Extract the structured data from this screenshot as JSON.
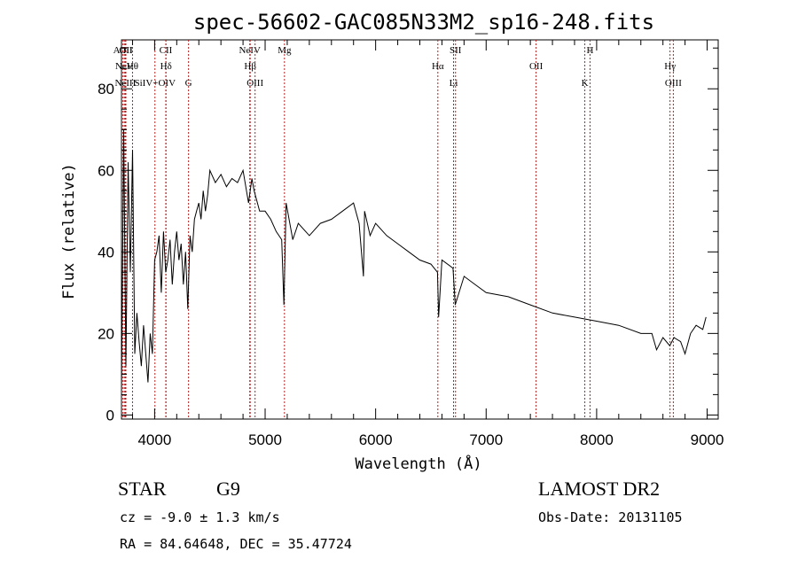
{
  "chart_data": {
    "type": "line",
    "title": "spec-56602-GAC085N33M2_sp16-248.fits",
    "xlabel": "Wavelength (Å)",
    "ylabel": "Flux (relative)",
    "xlim": [
      3700,
      9100
    ],
    "ylim": [
      -1,
      92
    ],
    "x_ticks": [
      4000,
      5000,
      6000,
      7000,
      8000,
      9000
    ],
    "x_tick_labels": [
      "4000",
      "5000",
      "6000",
      "7000",
      "8000",
      "9000"
    ],
    "y_ticks": [
      0,
      20,
      40,
      60,
      80
    ],
    "y_tick_labels": [
      "0",
      "20",
      "40",
      "60",
      "80"
    ],
    "grid": false,
    "series": [
      {
        "x": [
          3700,
          3720,
          3740,
          3760,
          3780,
          3800,
          3820,
          3840,
          3860,
          3880,
          3900,
          3920,
          3940,
          3960,
          3980,
          4000,
          4020,
          4040,
          4060,
          4080,
          4100,
          4120,
          4140,
          4160,
          4180,
          4200,
          4220,
          4240,
          4260,
          4280,
          4300,
          4320,
          4340,
          4360,
          4380,
          4400,
          4420,
          4440,
          4460,
          4480,
          4500,
          4550,
          4600,
          4650,
          4700,
          4750,
          4800,
          4850,
          4880,
          4900,
          4950,
          5000,
          5050,
          5100,
          5150,
          5170,
          5190,
          5250,
          5300,
          5400,
          5500,
          5600,
          5700,
          5800,
          5850,
          5890,
          5900,
          5950,
          6000,
          6100,
          6200,
          6300,
          6400,
          6500,
          6560,
          6570,
          6600,
          6700,
          6720,
          6800,
          6900,
          7000,
          7200,
          7400,
          7600,
          7800,
          8000,
          8200,
          8400,
          8500,
          8542,
          8600,
          8662,
          8700,
          8760,
          8800,
          8850,
          8900,
          8960,
          8990
        ],
        "y": [
          5,
          70,
          12,
          62,
          35,
          65,
          15,
          25,
          18,
          12,
          22,
          15,
          8,
          20,
          15,
          38,
          40,
          44,
          30,
          45,
          35,
          38,
          43,
          32,
          40,
          45,
          38,
          42,
          32,
          40,
          26,
          44,
          40,
          48,
          50,
          52,
          48,
          55,
          50,
          54,
          60,
          57,
          59,
          56,
          58,
          57,
          60,
          52,
          58,
          55,
          50,
          50,
          48,
          45,
          43,
          27,
          52,
          43,
          47,
          44,
          47,
          48,
          50,
          52,
          47,
          34,
          50,
          44,
          47,
          44,
          42,
          40,
          38,
          37,
          35,
          24,
          38,
          36,
          27,
          34,
          32,
          30,
          29,
          27,
          25,
          24,
          23,
          22,
          20,
          20,
          16,
          19,
          17,
          19,
          18,
          15,
          20,
          22,
          21,
          24
        ]
      }
    ],
    "line_markers": [
      {
        "label": "AlIII",
        "x": 3713
      },
      {
        "label": "NeV",
        "x": 3726
      },
      {
        "label": "NeIII",
        "x": 3735
      },
      {
        "label": "OII",
        "x": 3740
      },
      {
        "label": "Hθ",
        "x": 3800
      },
      {
        "label": "SiIV+OIV",
        "x": 4003
      },
      {
        "label": "CII",
        "x": 4101
      },
      {
        "label": "Hδ",
        "x": 4103
      },
      {
        "label": "G",
        "x": 4307
      },
      {
        "label": "NeIV",
        "x": 4861
      },
      {
        "label": "Hβ",
        "x": 4865
      },
      {
        "label": "OIII",
        "x": 4909
      },
      {
        "label": "Mg",
        "x": 5175
      },
      {
        "label": "Hα",
        "x": 6563
      },
      {
        "label": "Li",
        "x": 6705
      },
      {
        "label": "SII",
        "x": 6723
      },
      {
        "label": "OII",
        "x": 7452
      },
      {
        "label": "K",
        "x": 7893
      },
      {
        "label": "H",
        "x": 7940
      },
      {
        "label": "Hγ",
        "x": 8664
      },
      {
        "label": "OIII",
        "x": 8694
      }
    ]
  },
  "info": {
    "class_label": "STAR",
    "subclass": "G9",
    "survey": "LAMOST DR2",
    "redshift": "cz = -9.0 ± 1.3 km/s",
    "obs_date": "Obs-Date: 20131105",
    "coords": "RA =  84.64648, DEC =  35.47724"
  }
}
